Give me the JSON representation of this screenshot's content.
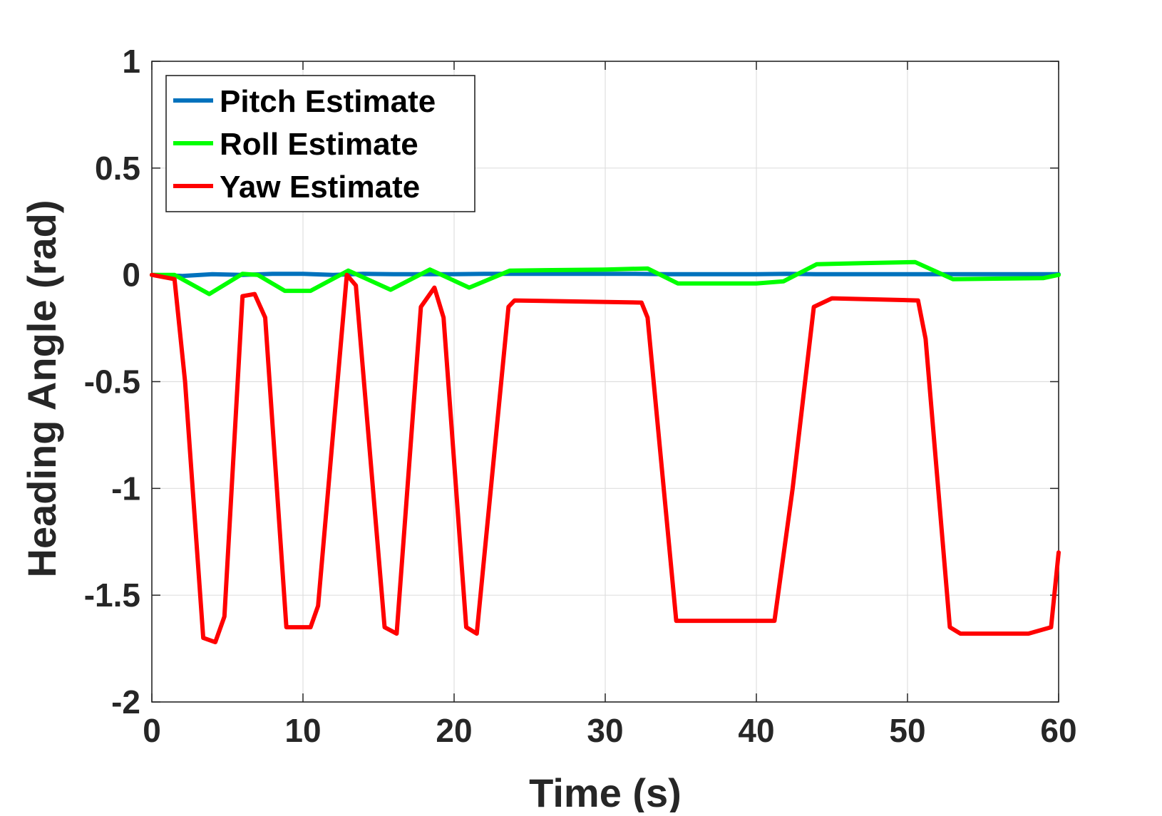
{
  "chart_data": {
    "type": "line",
    "xlabel": "Time (s)",
    "ylabel": "Heading Angle (rad)",
    "xlim": [
      0,
      60
    ],
    "ylim": [
      -2,
      1
    ],
    "xticks": [
      0,
      10,
      20,
      30,
      40,
      50,
      60
    ],
    "yticks": [
      -2,
      -1.5,
      -1,
      -0.5,
      0,
      0.5,
      1
    ],
    "xtick_labels": [
      "0",
      "10",
      "20",
      "30",
      "40",
      "50",
      "60"
    ],
    "ytick_labels": [
      "-2",
      "-1.5",
      "-1",
      "-0.5",
      "0",
      "0.5",
      "1"
    ],
    "grid": true,
    "legend_position": "top-left",
    "series": [
      {
        "name": "Pitch Estimate",
        "color": "#0072bd",
        "x": [
          0,
          2,
          4,
          6,
          8,
          10,
          12,
          14,
          16,
          18,
          20,
          22,
          24,
          26,
          28,
          30,
          32,
          34,
          36,
          38,
          40,
          42,
          44,
          46,
          48,
          50,
          52,
          54,
          56,
          58,
          60
        ],
        "y": [
          0,
          -0.005,
          0.003,
          0,
          0.005,
          0.005,
          0,
          0.005,
          0.003,
          0.003,
          0.003,
          0.005,
          0.005,
          0.005,
          0.005,
          0.005,
          0.005,
          0.003,
          0.003,
          0.003,
          0.003,
          0.005,
          0.003,
          0.003,
          0.003,
          0.003,
          0.003,
          0.003,
          0.003,
          0.003,
          0.003
        ]
      },
      {
        "name": "Roll Estimate",
        "color": "#00ff00",
        "x": [
          0,
          1.5,
          3.8,
          6,
          7,
          8.8,
          10.5,
          13,
          15.8,
          18.4,
          21,
          23.7,
          30,
          32.8,
          34.8,
          40,
          41.8,
          44,
          47,
          50.5,
          53,
          59,
          60
        ],
        "y": [
          0,
          0,
          -0.09,
          0.005,
          0,
          -0.075,
          -0.075,
          0.02,
          -0.07,
          0.025,
          -0.06,
          0.02,
          0.025,
          0.03,
          -0.04,
          -0.04,
          -0.03,
          0.05,
          0.055,
          0.06,
          -0.02,
          -0.015,
          0
        ]
      },
      {
        "name": "Yaw Estimate",
        "color": "#ff0000",
        "x": [
          0,
          1.5,
          2.2,
          3.4,
          4.2,
          4.8,
          6,
          6.8,
          7.5,
          8.9,
          10.5,
          11,
          12.9,
          13.5,
          15.4,
          16.2,
          17.8,
          18.7,
          19.3,
          20.8,
          21.5,
          23.6,
          24,
          32.4,
          32.8,
          34.7,
          35,
          41.2,
          42.4,
          43.8,
          45,
          50.7,
          51.2,
          52.8,
          53.5,
          58,
          59.5,
          60
        ],
        "y": [
          0,
          -0.02,
          -0.5,
          -1.7,
          -1.72,
          -1.6,
          -0.1,
          -0.09,
          -0.2,
          -1.65,
          -1.65,
          -1.55,
          0,
          -0.05,
          -1.65,
          -1.68,
          -0.15,
          -0.06,
          -0.2,
          -1.65,
          -1.68,
          -0.15,
          -0.12,
          -0.13,
          -0.2,
          -1.62,
          -1.62,
          -1.62,
          -1.0,
          -0.15,
          -0.11,
          -0.12,
          -0.3,
          -1.65,
          -1.68,
          -1.68,
          -1.65,
          -1.3
        ]
      }
    ]
  }
}
